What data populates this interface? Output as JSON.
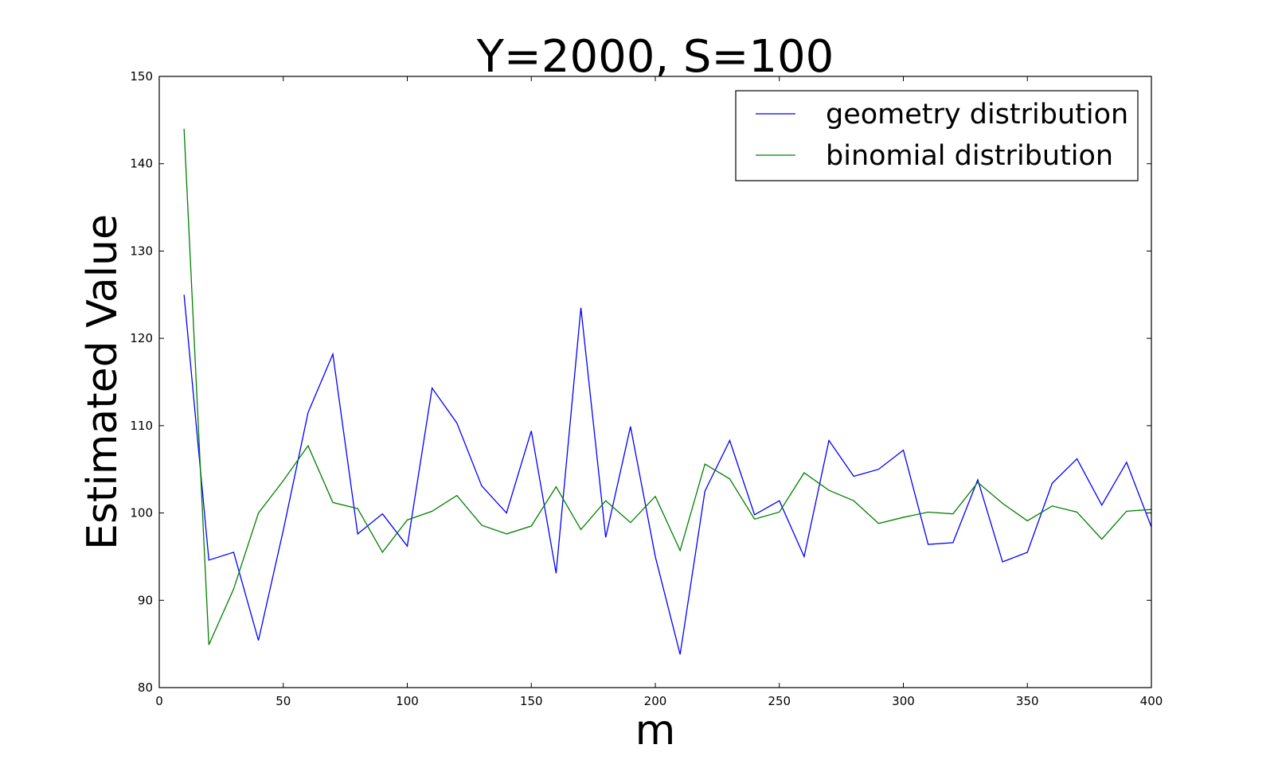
{
  "chart_data": {
    "type": "line",
    "title": "Y=2000, S=100",
    "xlabel": "m",
    "ylabel": "Estimated Value",
    "xlim": [
      0,
      400
    ],
    "ylim": [
      80,
      150
    ],
    "xticks": [
      "0",
      "50",
      "100",
      "150",
      "200",
      "250",
      "300",
      "350",
      "400"
    ],
    "yticks": [
      "80",
      "90",
      "100",
      "110",
      "120",
      "130",
      "140",
      "150"
    ],
    "grid": false,
    "legend_position": "top-right",
    "x": [
      10,
      20,
      30,
      40,
      50,
      60,
      70,
      80,
      90,
      100,
      110,
      120,
      130,
      140,
      150,
      160,
      170,
      180,
      190,
      200,
      210,
      220,
      230,
      240,
      250,
      260,
      270,
      280,
      290,
      300,
      310,
      320,
      330,
      340,
      350,
      360,
      370,
      380,
      390,
      400
    ],
    "series": [
      {
        "name": "geometry distribution",
        "color": "#0000ff",
        "values": [
          125.0,
          94.6,
          95.5,
          85.4,
          98.0,
          111.5,
          118.2,
          97.6,
          99.9,
          96.2,
          114.3,
          110.3,
          103.1,
          100.0,
          109.4,
          93.1,
          123.5,
          97.2,
          109.9,
          95.0,
          83.8,
          102.5,
          108.3,
          99.8,
          101.4,
          95.0,
          108.3,
          104.2,
          105.0,
          107.2,
          96.4,
          96.6,
          103.8,
          94.4,
          95.5,
          103.4,
          106.2,
          100.9,
          105.8,
          98.4
        ]
      },
      {
        "name": "binomial distribution",
        "color": "#008000",
        "values": [
          144.0,
          84.9,
          91.3,
          100.0,
          103.7,
          107.7,
          101.2,
          100.5,
          95.5,
          99.2,
          100.2,
          102.0,
          98.6,
          97.6,
          98.5,
          103.0,
          98.1,
          101.4,
          98.9,
          101.9,
          95.7,
          105.6,
          103.9,
          99.3,
          100.1,
          104.6,
          102.6,
          101.4,
          98.8,
          99.5,
          100.1,
          99.9,
          103.5,
          101.1,
          99.1,
          100.8,
          100.1,
          97.0,
          100.2,
          100.4
        ]
      }
    ]
  }
}
